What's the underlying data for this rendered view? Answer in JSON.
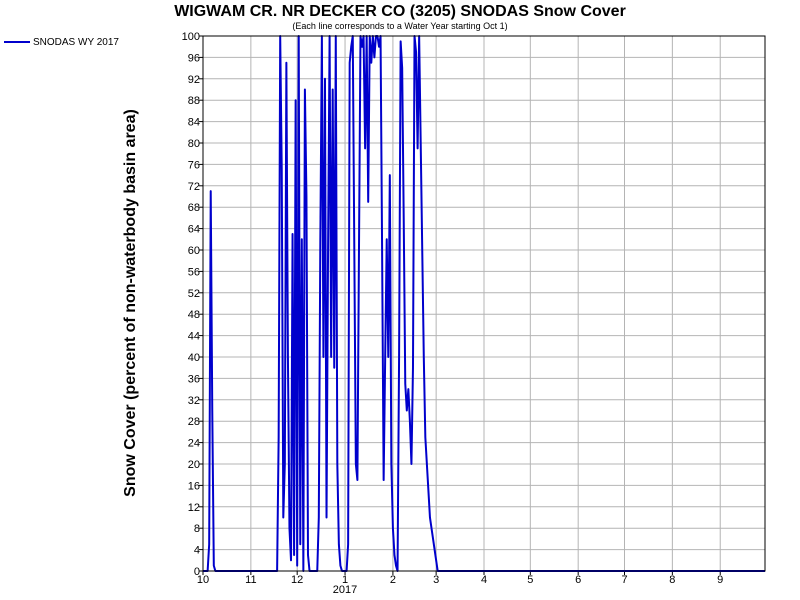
{
  "chart_data": {
    "type": "line",
    "title": "WIGWAM CR. NR DECKER CO (3205) SNODAS Snow Cover",
    "subtitle": "(Each line corresponds to a Water Year starting Oct 1)",
    "ylabel": "Snow Cover (percent of non-waterbody basin area)",
    "xlabel": "",
    "ylim": [
      0,
      100
    ],
    "yticks": [
      0,
      4,
      8,
      12,
      16,
      20,
      24,
      28,
      32,
      36,
      40,
      44,
      48,
      52,
      56,
      60,
      64,
      68,
      72,
      76,
      80,
      84,
      88,
      92,
      96,
      100
    ],
    "x_domain": [
      "2016-10-01",
      "2017-09-30"
    ],
    "x_ticks": [
      {
        "date": "2016-10-01",
        "label": "10"
      },
      {
        "date": "2016-11-01",
        "label": "11"
      },
      {
        "date": "2016-12-01",
        "label": "12"
      },
      {
        "date": "2017-01-01",
        "label": "1"
      },
      {
        "date": "2017-02-01",
        "label": "2"
      },
      {
        "date": "2017-03-01",
        "label": "3"
      },
      {
        "date": "2017-04-01",
        "label": "4"
      },
      {
        "date": "2017-05-01",
        "label": "5"
      },
      {
        "date": "2017-06-01",
        "label": "6"
      },
      {
        "date": "2017-07-01",
        "label": "7"
      },
      {
        "date": "2017-08-01",
        "label": "8"
      },
      {
        "date": "2017-09-01",
        "label": "9"
      }
    ],
    "year_label": {
      "date": "2017-01-01",
      "label": "2017"
    },
    "grid": true,
    "legend_position": "top-left",
    "series": [
      {
        "name": "SNODAS WY 2017",
        "color": "#0000cc",
        "points": [
          [
            "2016-10-01",
            0
          ],
          [
            "2016-10-02",
            0
          ],
          [
            "2016-10-03",
            0
          ],
          [
            "2016-10-04",
            0
          ],
          [
            "2016-10-05",
            5
          ],
          [
            "2016-10-06",
            71
          ],
          [
            "2016-10-07",
            30
          ],
          [
            "2016-10-08",
            1
          ],
          [
            "2016-10-09",
            0
          ],
          [
            "2016-11-10",
            0
          ],
          [
            "2016-11-18",
            0
          ],
          [
            "2016-11-19",
            25
          ],
          [
            "2016-11-20",
            100
          ],
          [
            "2016-11-21",
            75
          ],
          [
            "2016-11-22",
            10
          ],
          [
            "2016-11-23",
            20
          ],
          [
            "2016-11-24",
            95
          ],
          [
            "2016-11-25",
            40
          ],
          [
            "2016-11-26",
            8
          ],
          [
            "2016-11-27",
            2
          ],
          [
            "2016-11-28",
            63
          ],
          [
            "2016-11-29",
            3
          ],
          [
            "2016-11-30",
            88
          ],
          [
            "2016-12-01",
            1
          ],
          [
            "2016-12-02",
            100
          ],
          [
            "2016-12-03",
            5
          ],
          [
            "2016-12-04",
            62
          ],
          [
            "2016-12-05",
            0
          ],
          [
            "2016-12-06",
            90
          ],
          [
            "2016-12-07",
            70
          ],
          [
            "2016-12-08",
            3
          ],
          [
            "2016-12-09",
            0
          ],
          [
            "2016-12-14",
            0
          ],
          [
            "2016-12-15",
            10
          ],
          [
            "2016-12-16",
            62
          ],
          [
            "2016-12-17",
            100
          ],
          [
            "2016-12-18",
            40
          ],
          [
            "2016-12-19",
            92
          ],
          [
            "2016-12-20",
            10
          ],
          [
            "2016-12-21",
            60
          ],
          [
            "2016-12-22",
            100
          ],
          [
            "2016-12-23",
            40
          ],
          [
            "2016-12-24",
            90
          ],
          [
            "2016-12-25",
            38
          ],
          [
            "2016-12-26",
            100
          ],
          [
            "2016-12-27",
            20
          ],
          [
            "2016-12-28",
            5
          ],
          [
            "2016-12-29",
            1
          ],
          [
            "2016-12-30",
            0
          ],
          [
            "2017-01-01",
            0
          ],
          [
            "2017-01-02",
            0
          ],
          [
            "2017-01-03",
            5
          ],
          [
            "2017-01-04",
            95
          ],
          [
            "2017-01-05",
            98
          ],
          [
            "2017-01-06",
            100
          ],
          [
            "2017-01-07",
            60
          ],
          [
            "2017-01-08",
            20
          ],
          [
            "2017-01-09",
            17
          ],
          [
            "2017-01-10",
            59
          ],
          [
            "2017-01-11",
            100
          ],
          [
            "2017-01-12",
            98
          ],
          [
            "2017-01-13",
            100
          ],
          [
            "2017-01-14",
            79
          ],
          [
            "2017-01-15",
            100
          ],
          [
            "2017-01-16",
            69
          ],
          [
            "2017-01-17",
            100
          ],
          [
            "2017-01-18",
            95
          ],
          [
            "2017-01-19",
            100
          ],
          [
            "2017-01-20",
            96
          ],
          [
            "2017-01-21",
            100
          ],
          [
            "2017-01-22",
            100
          ],
          [
            "2017-01-23",
            98
          ],
          [
            "2017-01-24",
            100
          ],
          [
            "2017-01-25",
            60
          ],
          [
            "2017-01-26",
            17
          ],
          [
            "2017-01-27",
            40
          ],
          [
            "2017-01-28",
            62
          ],
          [
            "2017-01-29",
            40
          ],
          [
            "2017-01-30",
            74
          ],
          [
            "2017-01-31",
            20
          ],
          [
            "2017-02-01",
            8
          ],
          [
            "2017-02-02",
            3
          ],
          [
            "2017-02-03",
            1
          ],
          [
            "2017-02-04",
            0
          ],
          [
            "2017-02-05",
            40
          ],
          [
            "2017-02-06",
            99
          ],
          [
            "2017-02-07",
            94
          ],
          [
            "2017-02-08",
            66
          ],
          [
            "2017-02-09",
            35
          ],
          [
            "2017-02-10",
            30
          ],
          [
            "2017-02-11",
            34
          ],
          [
            "2017-02-12",
            28
          ],
          [
            "2017-02-13",
            20
          ],
          [
            "2017-02-14",
            38
          ],
          [
            "2017-02-15",
            100
          ],
          [
            "2017-02-16",
            97
          ],
          [
            "2017-02-17",
            79
          ],
          [
            "2017-02-18",
            100
          ],
          [
            "2017-02-19",
            80
          ],
          [
            "2017-02-20",
            60
          ],
          [
            "2017-02-21",
            40
          ],
          [
            "2017-02-22",
            25
          ],
          [
            "2017-02-23",
            20
          ],
          [
            "2017-02-25",
            10
          ],
          [
            "2017-02-27",
            6
          ],
          [
            "2017-03-01",
            2
          ],
          [
            "2017-03-02",
            0
          ],
          [
            "2017-03-15",
            0
          ],
          [
            "2017-04-15",
            0
          ],
          [
            "2017-05-15",
            0
          ],
          [
            "2017-06-15",
            0
          ],
          [
            "2017-07-15",
            0
          ],
          [
            "2017-08-15",
            0
          ],
          [
            "2017-09-30",
            0
          ]
        ]
      }
    ]
  }
}
